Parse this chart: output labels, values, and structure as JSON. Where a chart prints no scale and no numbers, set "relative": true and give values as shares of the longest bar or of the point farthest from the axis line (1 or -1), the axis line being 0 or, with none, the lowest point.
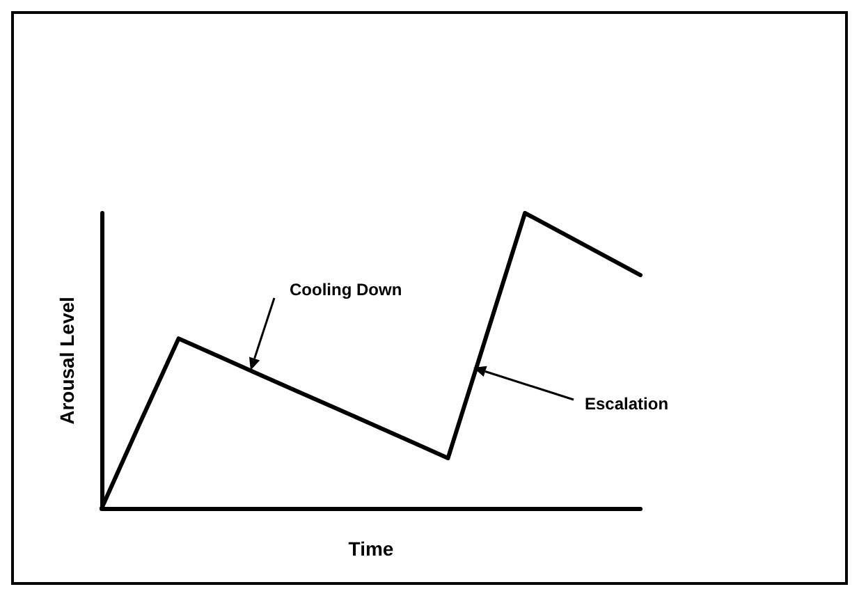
{
  "chart_data": {
    "type": "line",
    "relative": true,
    "xlabel": "Time",
    "ylabel": "Arousal Level",
    "categories": [
      null,
      null,
      null,
      null,
      null,
      null,
      null,
      null,
      null,
      null,
      null,
      null,
      null,
      null,
      null
    ],
    "series": [
      {
        "color": "#000000",
        "values": [
          0,
          0.29,
          0.575,
          0.517,
          0.459,
          0.401,
          0.344,
          0.286,
          0.228,
          0.17,
          0.585,
          1,
          0.93,
          0.86,
          0.79
        ]
      }
    ],
    "annotations": [
      "Cooling Down",
      "Escalation"
    ],
    "grid": false,
    "marker": "none",
    "line_style": "solid"
  }
}
